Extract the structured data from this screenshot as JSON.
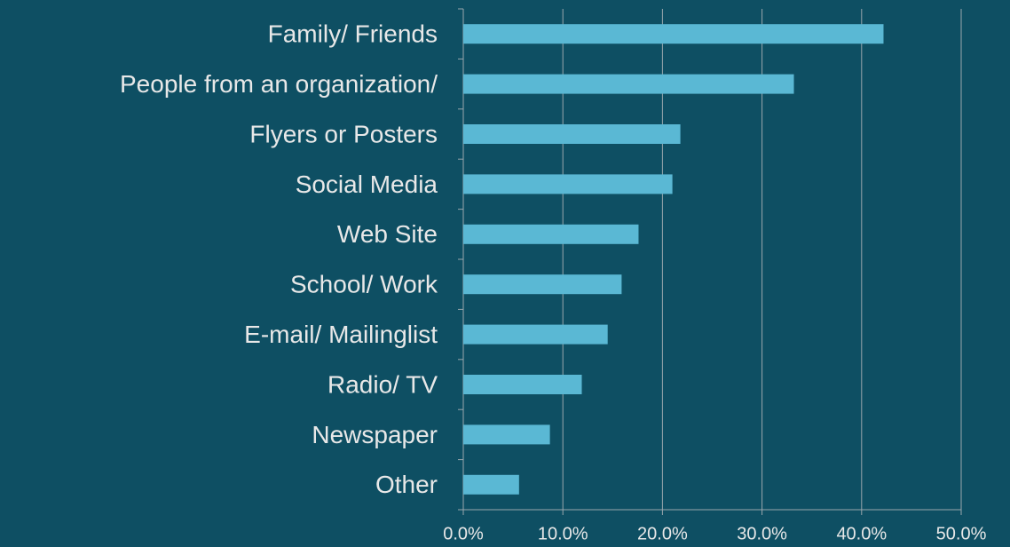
{
  "chart_data": {
    "type": "barh",
    "categories": [
      "Family/ Friends",
      "People from an organization/",
      "Flyers or Posters",
      "Social Media",
      "Web Site",
      "School/ Work",
      "E-mail/ Mailinglist",
      "Radio/ TV",
      "Newspaper",
      "Other"
    ],
    "values": [
      42.2,
      33.2,
      21.8,
      21.0,
      17.6,
      15.9,
      14.5,
      11.9,
      8.7,
      5.6
    ],
    "color": "#5ab8d4",
    "xlim": [
      0,
      50
    ],
    "xticks": [
      {
        "value": 0,
        "label": "0.0%"
      },
      {
        "value": 10,
        "label": "10.0%"
      },
      {
        "value": 20,
        "label": "20.0%"
      },
      {
        "value": 30,
        "label": "30.0%"
      },
      {
        "value": 40,
        "label": "40.0%"
      },
      {
        "value": 50,
        "label": "50.0%"
      }
    ],
    "grid": true
  }
}
